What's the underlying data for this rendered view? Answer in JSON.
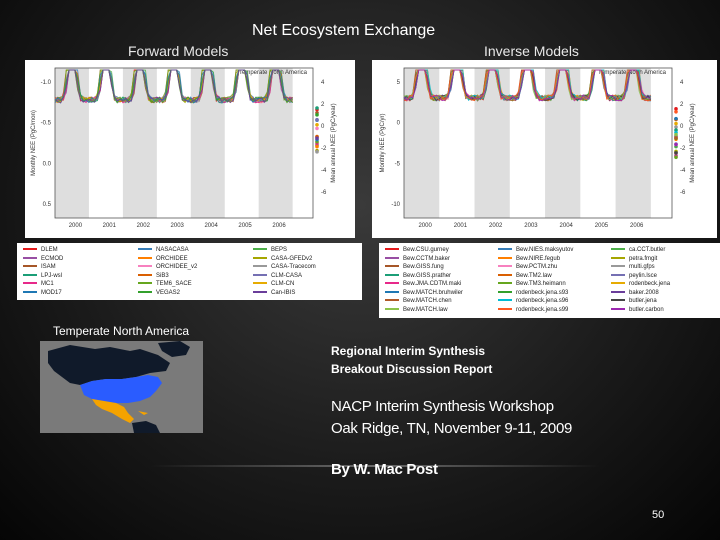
{
  "slide": {
    "title": "Net Ecosystem Exchange",
    "forward_label": "Forward Models",
    "inverse_label": "Inverse Models",
    "map_label": "Temperate North America",
    "report_line1": "Regional Interim Synthesis",
    "report_line2": "Breakout Discussion Report",
    "workshop_line1": "NACP Interim Synthesis Workshop",
    "workshop_line2": "Oak Ridge, TN,  November 9-11, 2009",
    "author": "By W. Mac Post",
    "page_number": "50"
  },
  "chart_data": [
    {
      "type": "line",
      "title": "Temperate North America",
      "xlabel": "",
      "ylabel": "Monthly NEE (PgC/mon)",
      "y2label": "Mean annual NEE (PgC/year)",
      "x_ticks": [
        "2000",
        "2001",
        "2002",
        "2003",
        "2004",
        "2005",
        "2006"
      ],
      "y_ticks": [
        "-1.0",
        "-0.5",
        "0.0",
        "0.5"
      ],
      "y2_ticks": [
        "4",
        "2",
        "0",
        "-2",
        "-4",
        "-6"
      ],
      "ylim": [
        -1.1,
        0.9
      ],
      "legend": [
        "DLEM",
        "NASACASA",
        "BEPS",
        "ECMOD",
        "ORCHIDEE",
        "CASA-GFEDv2",
        "ISAM",
        "ORCHIDEE_v2",
        "CASA-Tracecom",
        "LPJ-wsl",
        "SiB3",
        "CLM-CASA",
        "MC1",
        "TEM6_SACE",
        "CLM-CN",
        "MOD17",
        "VEGAS2",
        "Can-IBIS"
      ]
    },
    {
      "type": "line",
      "title": "Temperate North America",
      "xlabel": "",
      "ylabel": "Monthly NEE (PgC/yr)",
      "y2label": "Mean annual NEE (PgC/year)",
      "x_ticks": [
        "2000",
        "2001",
        "2002",
        "2003",
        "2004",
        "2005",
        "2006"
      ],
      "y_ticks": [
        "5",
        "0",
        "-5",
        "-10"
      ],
      "y2_ticks": [
        "4",
        "2",
        "0",
        "-2",
        "-4",
        "-6"
      ],
      "ylim": [
        -12,
        6
      ],
      "legend": [
        "Bew.CSU.gurney",
        "Bew.NIES.maksyutov",
        "ca.CCT.butler",
        "Bew.CCTM.baker",
        "Bew.NIRE.fegub",
        "petra.fmgit",
        "Bew.GISS.fung",
        "Bew.PCTM.zhu",
        "multi.gfps",
        "Bew.GISS.prather",
        "Bew.TM2.law",
        "peylin.lsce",
        "Bew.JMA.CDTM.maki",
        "Bew.TM3.heimann",
        "rodenbeck.jena",
        "Bew.MATCH.bruhwiler",
        "rodenbeck.jena.s93",
        "baker.2008",
        "Bew.MATCH.chen",
        "rodenbeck.jena.s96",
        "butler.jena",
        "Bew.MATCH.law",
        "rodenbeck.jena.s99",
        "butler.carbon"
      ]
    }
  ]
}
